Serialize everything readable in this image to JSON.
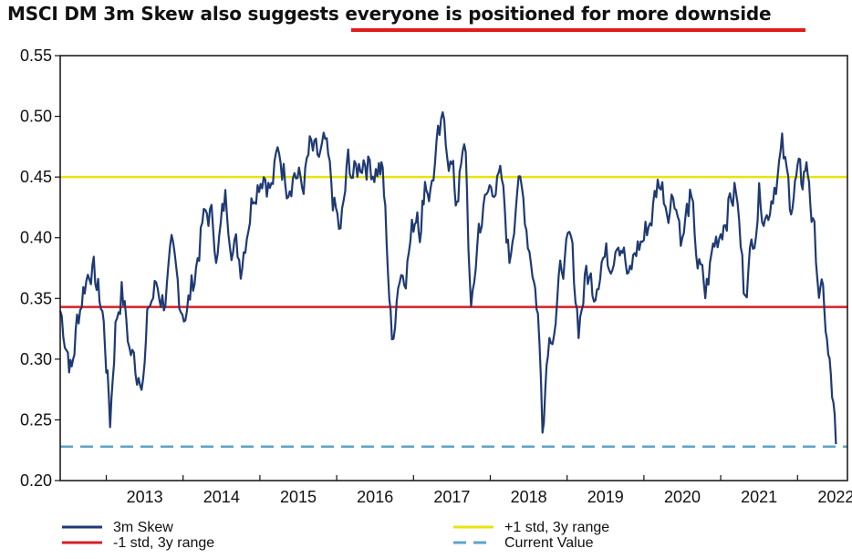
{
  "title": {
    "prefix": "MSCI DM 3m Skew also suggests ",
    "emphasis": "everyone is positioned for more downside",
    "emphasis_color": "#e11b1b"
  },
  "chart_data": {
    "type": "line",
    "title": "MSCI DM 3m Skew also suggests everyone is positioned for more downside",
    "xlabel": "",
    "ylabel": "",
    "x_ticks": [
      "2013",
      "2014",
      "2015",
      "2016",
      "2017",
      "2018",
      "2019",
      "2020",
      "2021",
      "2022"
    ],
    "y_ticks": [
      "0.20",
      "0.25",
      "0.30",
      "0.35",
      "0.40",
      "0.45",
      "0.50",
      "0.55"
    ],
    "xlim": [
      2012.4,
      2022.65
    ],
    "ylim": [
      0.2,
      0.55
    ],
    "grid": false,
    "legend_position": "bottom",
    "series": [
      {
        "name": "3m Skew",
        "color": "#1f3a73",
        "style": "solid",
        "x": [
          2012.4,
          2012.5,
          2012.55,
          2012.62,
          2012.7,
          2012.8,
          2012.95,
          2013.0,
          2013.05,
          2013.12,
          2013.2,
          2013.3,
          2013.4,
          2013.5,
          2013.55,
          2013.65,
          2013.75,
          2013.85,
          2013.95,
          2014.05,
          2014.15,
          2014.25,
          2014.35,
          2014.45,
          2014.55,
          2014.65,
          2014.75,
          2014.85,
          2014.95,
          2015.05,
          2015.15,
          2015.25,
          2015.35,
          2015.45,
          2015.55,
          2015.65,
          2015.75,
          2015.85,
          2015.95,
          2016.05,
          2016.15,
          2016.25,
          2016.35,
          2016.45,
          2016.55,
          2016.6,
          2016.65,
          2016.72,
          2016.8,
          2016.9,
          2017.0,
          2017.05,
          2017.1,
          2017.15,
          2017.22,
          2017.3,
          2017.4,
          2017.5,
          2017.55,
          2017.6,
          2017.68,
          2017.75,
          2017.85,
          2017.95,
          2018.05,
          2018.15,
          2018.25,
          2018.35,
          2018.45,
          2018.55,
          2018.62,
          2018.68,
          2018.75,
          2018.85,
          2018.95,
          2019.05,
          2019.15,
          2019.25,
          2019.35,
          2019.45,
          2019.55,
          2019.65,
          2019.72,
          2019.8,
          2019.9,
          2020.0,
          2020.1,
          2020.2,
          2020.3,
          2020.4,
          2020.5,
          2020.6,
          2020.7,
          2020.8,
          2020.9,
          2021.0,
          2021.1,
          2021.2,
          2021.3,
          2021.4,
          2021.5,
          2021.6,
          2021.7,
          2021.8,
          2021.9,
          2021.95,
          2022.0,
          2022.05,
          2022.1,
          2022.15,
          2022.2,
          2022.28,
          2022.35,
          2022.4,
          2022.45,
          2022.5
        ],
        "values": [
          0.34,
          0.31,
          0.29,
          0.33,
          0.36,
          0.38,
          0.34,
          0.3,
          0.25,
          0.33,
          0.36,
          0.31,
          0.29,
          0.3,
          0.34,
          0.36,
          0.35,
          0.38,
          0.35,
          0.34,
          0.37,
          0.41,
          0.42,
          0.39,
          0.43,
          0.4,
          0.38,
          0.42,
          0.45,
          0.46,
          0.44,
          0.47,
          0.45,
          0.46,
          0.44,
          0.47,
          0.46,
          0.47,
          0.43,
          0.4,
          0.46,
          0.45,
          0.47,
          0.46,
          0.46,
          0.45,
          0.4,
          0.31,
          0.37,
          0.38,
          0.41,
          0.43,
          0.41,
          0.45,
          0.44,
          0.47,
          0.49,
          0.46,
          0.43,
          0.45,
          0.47,
          0.33,
          0.41,
          0.43,
          0.45,
          0.44,
          0.38,
          0.45,
          0.42,
          0.38,
          0.34,
          0.25,
          0.32,
          0.34,
          0.38,
          0.39,
          0.33,
          0.37,
          0.36,
          0.39,
          0.38,
          0.41,
          0.4,
          0.36,
          0.39,
          0.4,
          0.42,
          0.45,
          0.43,
          0.44,
          0.4,
          0.43,
          0.38,
          0.35,
          0.39,
          0.41,
          0.43,
          0.44,
          0.36,
          0.39,
          0.44,
          0.42,
          0.45,
          0.47,
          0.43,
          0.44,
          0.45,
          0.44,
          0.46,
          0.45,
          0.41,
          0.36,
          0.34,
          0.3,
          0.27,
          0.23
        ]
      },
      {
        "name": "+1 std, 3y range",
        "color": "#e7e40f",
        "style": "solid",
        "x": [
          2012.4,
          2022.65
        ],
        "values": [
          0.45,
          0.45
        ]
      },
      {
        "name": "-1 std, 3y range",
        "color": "#d52027",
        "style": "solid",
        "x": [
          2012.4,
          2022.65
        ],
        "values": [
          0.343,
          0.343
        ]
      },
      {
        "name": "Current Value",
        "color": "#5da4c6",
        "style": "dashed",
        "x": [
          2012.4,
          2022.65
        ],
        "values": [
          0.228,
          0.228
        ]
      }
    ]
  }
}
